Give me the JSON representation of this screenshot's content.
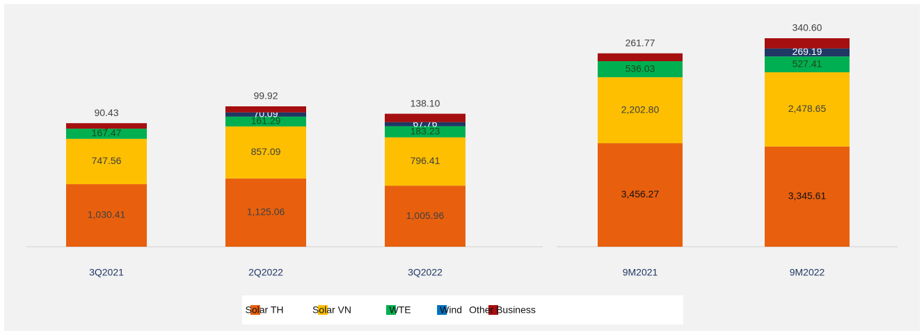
{
  "chart_data": [
    {
      "type": "stacked-bar",
      "categories": [
        "3Q2021",
        "2Q2022",
        "3Q2022"
      ],
      "series": [
        {
          "name": "Solar TH",
          "color": "#e8600e",
          "values": [
            1030.41,
            1125.06,
            1005.96
          ],
          "value_labels": [
            "1,030.41",
            "1,125.06",
            "1,005.96"
          ]
        },
        {
          "name": "Solar VN",
          "color": "#fdbf00",
          "values": [
            747.56,
            857.09,
            796.41
          ],
          "value_labels": [
            "747.56",
            "857.09",
            "796.41"
          ]
        },
        {
          "name": "WTE",
          "color": "#00b050",
          "values": [
            167.47,
            161.29,
            183.23
          ],
          "value_labels": [
            "167.47",
            "161.29",
            "183.23"
          ]
        },
        {
          "name": "Wind",
          "color": "#1f3864",
          "values": [
            0,
            70.09,
            67.76
          ],
          "value_labels": [
            "-",
            "70.09",
            "67.76"
          ]
        },
        {
          "name": "Other Business",
          "color": "#a50f0f",
          "values": [
            90.43,
            99.92,
            138.1
          ],
          "value_labels": [
            "90.43",
            "99.92",
            "138.10"
          ]
        }
      ]
    },
    {
      "type": "stacked-bar",
      "categories": [
        "9M2021",
        "9M2022"
      ],
      "series": [
        {
          "name": "Solar TH",
          "color": "#e8600e",
          "values": [
            3456.27,
            3345.61
          ],
          "value_labels": [
            "3,456.27",
            "3,345.61"
          ]
        },
        {
          "name": "Solar VN",
          "color": "#fdbf00",
          "values": [
            2202.8,
            2478.65
          ],
          "value_labels": [
            "2,202.80",
            "2,478.65"
          ]
        },
        {
          "name": "WTE",
          "color": "#00b050",
          "values": [
            536.03,
            527.41
          ],
          "value_labels": [
            "536.03",
            "527.41"
          ]
        },
        {
          "name": "Wind",
          "color": "#1f3864",
          "values": [
            0,
            269.19
          ],
          "value_labels": [
            "-",
            "269.19"
          ]
        },
        {
          "name": "Other Business",
          "color": "#a50f0f",
          "values": [
            261.77,
            340.6
          ],
          "value_labels": [
            "261.77",
            "340.60"
          ]
        }
      ]
    }
  ]
}
